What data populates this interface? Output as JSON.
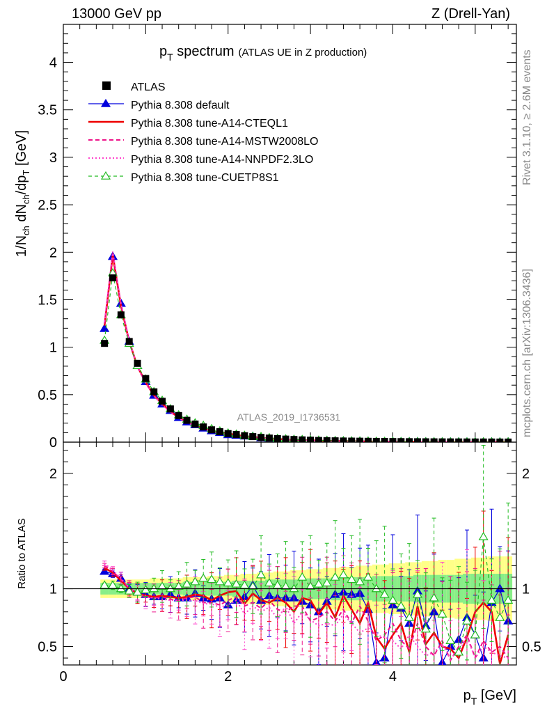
{
  "header": {
    "left": "13000 GeV pp",
    "right": "Z (Drell-Yan)"
  },
  "side_labels": {
    "rivet": "Rivet 3.1.10, ≥ 2.6M events",
    "mcplots": "mcplots.cern.ch [arXiv:1306.3436]"
  },
  "chart_data": {
    "type": "line",
    "title": "p_T spectrum",
    "title_main": "p",
    "title_sub": "T",
    "title_rest": " spectrum",
    "title_note": "(ATLAS UE in Z production)",
    "analysis_label": "ATLAS_2019_I1736531",
    "xlabel": "p_T [GeV]",
    "ylabel": "1/N_ch dN_ch/dp_T [GeV]",
    "ratio_ylabel": "Ratio to ATLAS",
    "xlim": [
      0,
      5.5
    ],
    "ylim": [
      0,
      4.4
    ],
    "ratio_ylim": [
      0.34,
      2.27
    ],
    "xticks": [
      "0",
      "2",
      "4"
    ],
    "yticks": [
      "0",
      "0.5",
      "1",
      "1.5",
      "2",
      "2.5",
      "3",
      "3.5",
      "4"
    ],
    "ratio_yticks": [
      "0.5",
      "1",
      "2"
    ],
    "x": [
      0.5,
      0.6,
      0.7,
      0.8,
      0.9,
      1.0,
      1.1,
      1.2,
      1.3,
      1.4,
      1.5,
      1.6,
      1.7,
      1.8,
      1.9,
      2.0,
      2.1,
      2.2,
      2.3,
      2.4,
      2.5,
      2.6,
      2.7,
      2.8,
      2.9,
      3.0,
      3.1,
      3.2,
      3.3,
      3.4,
      3.5,
      3.6,
      3.7,
      3.8,
      3.9,
      4.0,
      4.1,
      4.2,
      4.3,
      4.4,
      4.5,
      4.6,
      4.7,
      4.8,
      4.9,
      5.0,
      5.1,
      5.2,
      5.3,
      5.4
    ],
    "atlas_values": [
      1.04,
      1.73,
      1.34,
      1.06,
      0.83,
      0.67,
      0.53,
      0.43,
      0.35,
      0.28,
      0.23,
      0.19,
      0.16,
      0.13,
      0.11,
      0.09,
      0.08,
      0.068,
      0.058,
      0.05,
      0.043,
      0.037,
      0.032,
      0.028,
      0.024,
      0.021,
      0.018,
      0.016,
      0.014,
      0.012,
      0.011,
      0.01,
      0.009,
      0.008,
      0.007,
      0.0062,
      0.0055,
      0.0049,
      0.0043,
      0.0038,
      0.0034,
      0.003,
      0.0027,
      0.0024,
      0.0021,
      0.0019,
      0.0017,
      0.0015,
      0.0013,
      0.0012
    ],
    "band_stat_syst": [
      0.05,
      0.05,
      0.05,
      0.05,
      0.05,
      0.05,
      0.05,
      0.05,
      0.05,
      0.05,
      0.06,
      0.06,
      0.06,
      0.06,
      0.06,
      0.06,
      0.07,
      0.07,
      0.07,
      0.07,
      0.08,
      0.08,
      0.08,
      0.08,
      0.09,
      0.09,
      0.09,
      0.09,
      0.1,
      0.1,
      0.1,
      0.1,
      0.1,
      0.11,
      0.11,
      0.11,
      0.11,
      0.11,
      0.12,
      0.12,
      0.12,
      0.12,
      0.12,
      0.12,
      0.13,
      0.13,
      0.13,
      0.13,
      0.13,
      0.13
    ],
    "band_total": [
      0.08,
      0.08,
      0.08,
      0.08,
      0.08,
      0.08,
      0.09,
      0.09,
      0.09,
      0.09,
      0.1,
      0.1,
      0.1,
      0.11,
      0.11,
      0.12,
      0.12,
      0.13,
      0.13,
      0.14,
      0.14,
      0.15,
      0.15,
      0.16,
      0.16,
      0.17,
      0.17,
      0.18,
      0.18,
      0.19,
      0.19,
      0.2,
      0.2,
      0.21,
      0.21,
      0.22,
      0.22,
      0.23,
      0.23,
      0.24,
      0.24,
      0.25,
      0.25,
      0.26,
      0.26,
      0.27,
      0.27,
      0.28,
      0.28,
      0.28
    ],
    "series": [
      {
        "name": "ATLAS",
        "style": "data",
        "color": "#000000",
        "marker": "square"
      },
      {
        "name": "Pythia 8.308 default",
        "style": "solid-thin",
        "color": "#0000dd",
        "marker": "triangle-filled",
        "ratio": [
          1.15,
          1.13,
          1.09,
          1.0,
          0.97,
          0.95,
          0.93,
          0.93,
          0.95,
          0.92,
          0.92,
          0.96,
          0.92,
          0.91,
          0.92,
          0.86,
          0.9,
          0.93,
          1.03,
          0.9,
          0.94,
          0.92,
          0.92,
          0.92,
          0.89,
          0.86,
          0.8,
          0.89,
          0.95,
          0.97,
          0.95,
          0.96,
          0.82,
          0.36,
          0.4,
          0.86,
          0.83,
          0.7,
          0.98,
          0.68,
          0.8,
          0.36,
          0.5,
          0.56,
          0.75,
          0.6,
          0.4,
          0.88,
          1.0,
          0.72
        ]
      },
      {
        "name": "Pythia 8.308 tune-A14-CTEQL1",
        "style": "solid-thick",
        "color": "#ee0000",
        "ratio": [
          1.18,
          1.14,
          1.07,
          1.0,
          0.96,
          0.94,
          0.93,
          0.94,
          0.93,
          0.92,
          0.93,
          0.95,
          0.94,
          0.9,
          0.94,
          0.97,
          0.98,
          0.87,
          0.96,
          0.9,
          0.88,
          0.92,
          0.88,
          0.8,
          0.92,
          0.9,
          0.78,
          0.88,
          0.75,
          0.94,
          0.82,
          0.7,
          0.88,
          0.58,
          0.48,
          0.6,
          0.7,
          0.45,
          0.85,
          0.52,
          0.62,
          0.5,
          0.48,
          0.4,
          0.58,
          0.8,
          0.88,
          0.8,
          0.35,
          0.6
        ]
      },
      {
        "name": "Pythia 8.308 tune-A14-MSTW2008LO",
        "style": "dashed",
        "color": "#ee1188",
        "ratio": [
          1.2,
          1.15,
          1.08,
          1.0,
          0.95,
          0.93,
          0.92,
          0.93,
          0.91,
          0.9,
          0.92,
          0.93,
          0.88,
          0.88,
          0.86,
          0.9,
          0.93,
          0.85,
          0.88,
          0.83,
          0.9,
          0.82,
          0.8,
          0.85,
          0.85,
          0.72,
          0.75,
          0.8,
          0.72,
          0.82,
          0.7,
          0.85,
          0.72,
          0.55,
          0.6,
          0.7,
          0.55,
          0.48,
          0.7,
          0.5,
          0.42,
          0.55,
          0.38,
          0.5,
          0.6,
          0.4,
          0.55,
          0.45,
          0.5,
          0.4
        ]
      },
      {
        "name": "Pythia 8.308 tune-A14-NNPDF2.3LO",
        "style": "dotted",
        "color": "#ff44cc",
        "ratio": [
          1.22,
          1.16,
          1.09,
          1.01,
          0.96,
          0.93,
          0.92,
          0.91,
          0.9,
          0.9,
          0.9,
          0.9,
          0.87,
          0.87,
          0.84,
          0.86,
          0.9,
          0.78,
          0.85,
          0.8,
          0.84,
          0.74,
          0.85,
          0.7,
          0.8,
          0.73,
          0.68,
          0.7,
          0.68,
          0.78,
          0.7,
          0.62,
          0.66,
          0.6,
          0.58,
          0.55,
          0.48,
          0.6,
          0.5,
          0.42,
          0.45,
          0.52,
          0.4,
          0.46,
          0.58,
          0.4,
          0.5,
          0.45,
          0.42,
          0.4
        ]
      },
      {
        "name": "Pythia 8.308 tune-CUETP8S1",
        "style": "dashed-thin",
        "color": "#22bb22",
        "marker": "triangle-open",
        "ratio": [
          1.03,
          1.03,
          1.0,
          0.98,
          0.97,
          0.99,
          1.0,
          1.02,
          1.0,
          1.02,
          1.04,
          1.06,
          1.09,
          1.08,
          1.06,
          1.05,
          1.04,
          1.03,
          1.02,
          1.12,
          1.05,
          1.03,
          1.02,
          1.0,
          1.1,
          1.02,
          1.04,
          1.05,
          1.1,
          1.12,
          1.08,
          1.06,
          1.1,
          1.0,
          0.95,
          0.9,
          0.85,
          0.75,
          0.95,
          0.65,
          0.92,
          0.78,
          0.55,
          0.45,
          0.72,
          0.6,
          1.45,
          0.9,
          0.75,
          0.9
        ]
      }
    ]
  }
}
